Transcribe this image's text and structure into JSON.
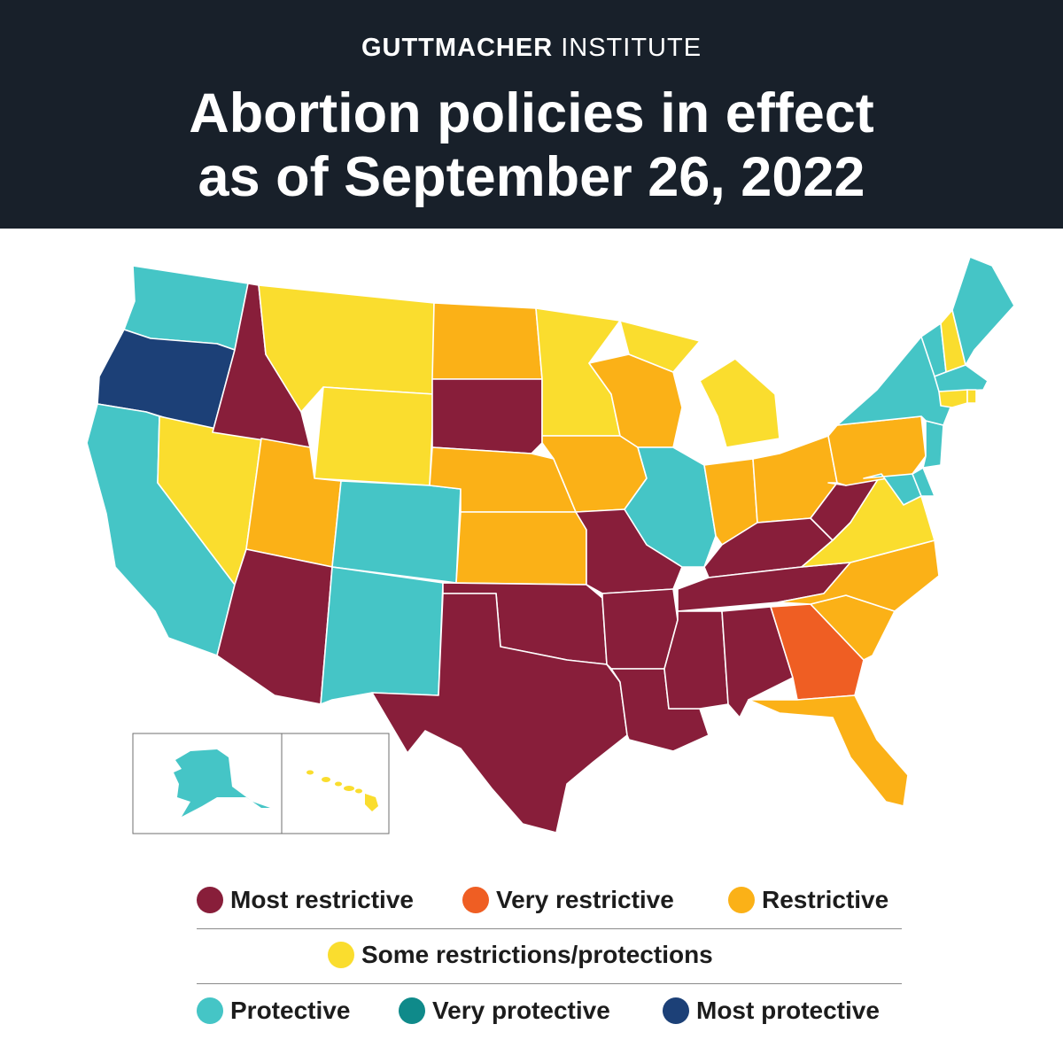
{
  "header": {
    "org_bold": "GUTTMACHER",
    "org_light": "INSTITUTE",
    "title_line1": "Abortion policies in effect",
    "title_line2": "as of September 26, 2022"
  },
  "colors": {
    "most_restrictive": "#881e3a",
    "very_restrictive": "#ef5e23",
    "restrictive": "#fbb117",
    "some": "#fadd2e",
    "protective": "#45c5c6",
    "very_protective": "#0f8a8a",
    "most_protective": "#1c4077",
    "header_bg": "#18202a"
  },
  "legend": {
    "most_restrictive": "Most restrictive",
    "very_restrictive": "Very restrictive",
    "restrictive": "Restrictive",
    "some": "Some restrictions/protections",
    "protective": "Protective",
    "very_protective": "Very protective",
    "most_protective": "Most protective"
  },
  "states": [
    {
      "name": "Washington",
      "category": "protective"
    },
    {
      "name": "Oregon",
      "category": "most_protective"
    },
    {
      "name": "California",
      "category": "protective"
    },
    {
      "name": "Nevada",
      "category": "some"
    },
    {
      "name": "Idaho",
      "category": "most_restrictive"
    },
    {
      "name": "Montana",
      "category": "some"
    },
    {
      "name": "Wyoming",
      "category": "some"
    },
    {
      "name": "Utah",
      "category": "restrictive"
    },
    {
      "name": "Arizona",
      "category": "most_restrictive"
    },
    {
      "name": "Colorado",
      "category": "protective"
    },
    {
      "name": "New Mexico",
      "category": "protective"
    },
    {
      "name": "North Dakota",
      "category": "restrictive"
    },
    {
      "name": "South Dakota",
      "category": "most_restrictive"
    },
    {
      "name": "Nebraska",
      "category": "restrictive"
    },
    {
      "name": "Kansas",
      "category": "restrictive"
    },
    {
      "name": "Oklahoma",
      "category": "most_restrictive"
    },
    {
      "name": "Texas",
      "category": "most_restrictive"
    },
    {
      "name": "Minnesota",
      "category": "some"
    },
    {
      "name": "Iowa",
      "category": "restrictive"
    },
    {
      "name": "Missouri",
      "category": "most_restrictive"
    },
    {
      "name": "Arkansas",
      "category": "most_restrictive"
    },
    {
      "name": "Louisiana",
      "category": "most_restrictive"
    },
    {
      "name": "Wisconsin",
      "category": "restrictive"
    },
    {
      "name": "Illinois",
      "category": "protective"
    },
    {
      "name": "Michigan",
      "category": "some"
    },
    {
      "name": "Indiana",
      "category": "restrictive"
    },
    {
      "name": "Ohio",
      "category": "restrictive"
    },
    {
      "name": "Kentucky",
      "category": "most_restrictive"
    },
    {
      "name": "Tennessee",
      "category": "most_restrictive"
    },
    {
      "name": "Mississippi",
      "category": "most_restrictive"
    },
    {
      "name": "Alabama",
      "category": "most_restrictive"
    },
    {
      "name": "Georgia",
      "category": "very_restrictive"
    },
    {
      "name": "Florida",
      "category": "restrictive"
    },
    {
      "name": "South Carolina",
      "category": "restrictive"
    },
    {
      "name": "North Carolina",
      "category": "restrictive"
    },
    {
      "name": "Virginia",
      "category": "some"
    },
    {
      "name": "West Virginia",
      "category": "most_restrictive"
    },
    {
      "name": "Pennsylvania",
      "category": "restrictive"
    },
    {
      "name": "New York",
      "category": "protective"
    },
    {
      "name": "Vermont",
      "category": "protective"
    },
    {
      "name": "New Hampshire",
      "category": "some"
    },
    {
      "name": "Maine",
      "category": "protective"
    },
    {
      "name": "Massachusetts",
      "category": "protective"
    },
    {
      "name": "Rhode Island",
      "category": "some"
    },
    {
      "name": "Connecticut",
      "category": "some"
    },
    {
      "name": "New Jersey",
      "category": "protective"
    },
    {
      "name": "Delaware",
      "category": "protective"
    },
    {
      "name": "Maryland",
      "category": "protective"
    },
    {
      "name": "Alaska",
      "category": "protective"
    },
    {
      "name": "Hawaii",
      "category": "some"
    }
  ]
}
